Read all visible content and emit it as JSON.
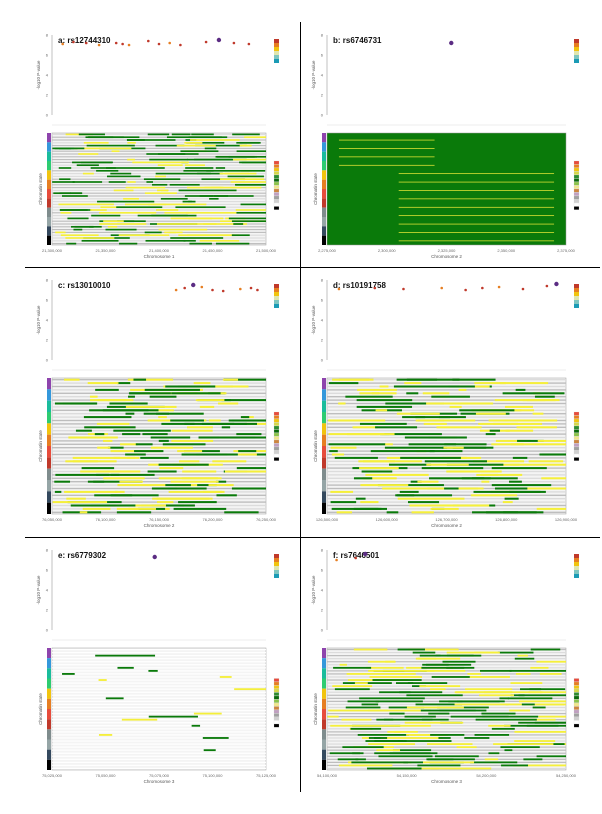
{
  "colors": {
    "background": "#ffffff",
    "divider": "#000000",
    "state_green": "#0a7a0a",
    "state_yellow": "#f5ef3a",
    "state_gray": "#bdbdbd",
    "state_lightgray": "#dcdcdc",
    "state_white": "#ffffff",
    "ld_scale": [
      "#c0392b",
      "#e67e22",
      "#f1c40f",
      "#dfe6b0",
      "#7fc6c0",
      "#1b9bb5"
    ],
    "state_scale": [
      "#e74c3c",
      "#e67e22",
      "#f1c40f",
      "#d4d84a",
      "#2e8b2e",
      "#0a6a0a",
      "#8bc34a",
      "#f0e68c",
      "#cd853f",
      "#c0a0c0",
      "#a0a0a0",
      "#d0d0d0",
      "#ffffff",
      "#000000"
    ],
    "tissue_scale": [
      "#8e44ad",
      "#3498db",
      "#1abc9c",
      "#2ecc71",
      "#f1c40f",
      "#e67e22",
      "#e74c3c",
      "#c0392b",
      "#7f8c8d",
      "#95a5a6",
      "#34495e",
      "#000000"
    ]
  },
  "chart_data": [
    {
      "type": "scatter",
      "panel": "a",
      "title": "a: rs12744310",
      "ylabel": "-log10 P-value",
      "xlabel": "Chromosome 1",
      "ylim": [
        0,
        8
      ],
      "x_ticks": [
        "21,300,000",
        "21,350,000",
        "21,400,000",
        "21,450,000",
        "21,500,000"
      ],
      "points": [
        [
          0.05,
          7.1
        ],
        [
          0.1,
          7.3
        ],
        [
          0.16,
          7.2
        ],
        [
          0.22,
          7.0
        ],
        [
          0.3,
          7.2
        ],
        [
          0.33,
          7.1
        ],
        [
          0.36,
          7.0
        ],
        [
          0.45,
          7.4
        ],
        [
          0.5,
          7.1
        ],
        [
          0.55,
          7.2
        ],
        [
          0.6,
          7.0
        ],
        [
          0.72,
          7.3
        ],
        [
          0.78,
          7.5
        ],
        [
          0.85,
          7.2
        ],
        [
          0.92,
          7.1
        ]
      ],
      "lead_point": 0.78,
      "heatmap_rows": 40
    },
    {
      "type": "scatter",
      "panel": "b",
      "title": "b: rs6746731",
      "ylabel": "-log10 P-value",
      "xlabel": "Chromosome 2",
      "ylim": [
        0,
        8
      ],
      "x_ticks": [
        "2,275,000",
        "2,300,000",
        "2,325,000",
        "2,350,000",
        "2,375,000"
      ],
      "points": [
        [
          0.52,
          7.2
        ]
      ],
      "lead_point": 0.52,
      "heatmap_rows": 40
    },
    {
      "type": "scatter",
      "panel": "c",
      "title": "c: rs13010010",
      "ylabel": "-log10 P-value",
      "xlabel": "Chromosome 2",
      "ylim": [
        0,
        8
      ],
      "x_ticks": [
        "76,050,000",
        "76,100,000",
        "76,150,000",
        "76,200,000",
        "76,250,000"
      ],
      "points": [
        [
          0.58,
          7.0
        ],
        [
          0.62,
          7.2
        ],
        [
          0.66,
          7.5
        ],
        [
          0.7,
          7.3
        ],
        [
          0.75,
          7.0
        ],
        [
          0.8,
          6.9
        ],
        [
          0.88,
          7.1
        ],
        [
          0.93,
          7.2
        ],
        [
          0.96,
          7.0
        ]
      ],
      "lead_point": 0.66,
      "heatmap_rows": 40
    },
    {
      "type": "scatter",
      "panel": "d",
      "title": "d: rs10191758",
      "ylabel": "-log10 P-value",
      "xlabel": "Chromosome 2",
      "ylim": [
        0,
        8
      ],
      "x_ticks": [
        "126,500,000",
        "126,600,000",
        "126,700,000",
        "126,800,000",
        "126,900,000"
      ],
      "points": [
        [
          0.05,
          7.1
        ],
        [
          0.2,
          7.2
        ],
        [
          0.32,
          7.1
        ],
        [
          0.48,
          7.2
        ],
        [
          0.58,
          7.0
        ],
        [
          0.65,
          7.2
        ],
        [
          0.72,
          7.3
        ],
        [
          0.82,
          7.1
        ],
        [
          0.92,
          7.4
        ],
        [
          0.96,
          7.6
        ]
      ],
      "lead_point": 0.96,
      "heatmap_rows": 40
    },
    {
      "type": "scatter",
      "panel": "e",
      "title": "e: rs6779302",
      "ylabel": "-log10 P-value",
      "xlabel": "Chromosome 3",
      "ylim": [
        0,
        8
      ],
      "x_ticks": [
        "75,025,000",
        "75,050,000",
        "75,075,000",
        "75,100,000",
        "75,125,000"
      ],
      "points": [
        [
          0.48,
          7.3
        ]
      ],
      "lead_point": 0.48,
      "heatmap_rows": 40
    },
    {
      "type": "scatter",
      "panel": "f",
      "title": "f: rs7646501",
      "ylabel": "-log10 P-value",
      "xlabel": "Chromosome 3",
      "ylim": [
        0,
        8
      ],
      "x_ticks": [
        "54,100,000",
        "54,150,000",
        "54,200,000",
        "54,250,000"
      ],
      "points": [
        [
          0.04,
          7.0
        ],
        [
          0.12,
          7.2
        ],
        [
          0.16,
          7.6
        ]
      ],
      "lead_point": 0.16,
      "heatmap_rows": 40
    }
  ]
}
